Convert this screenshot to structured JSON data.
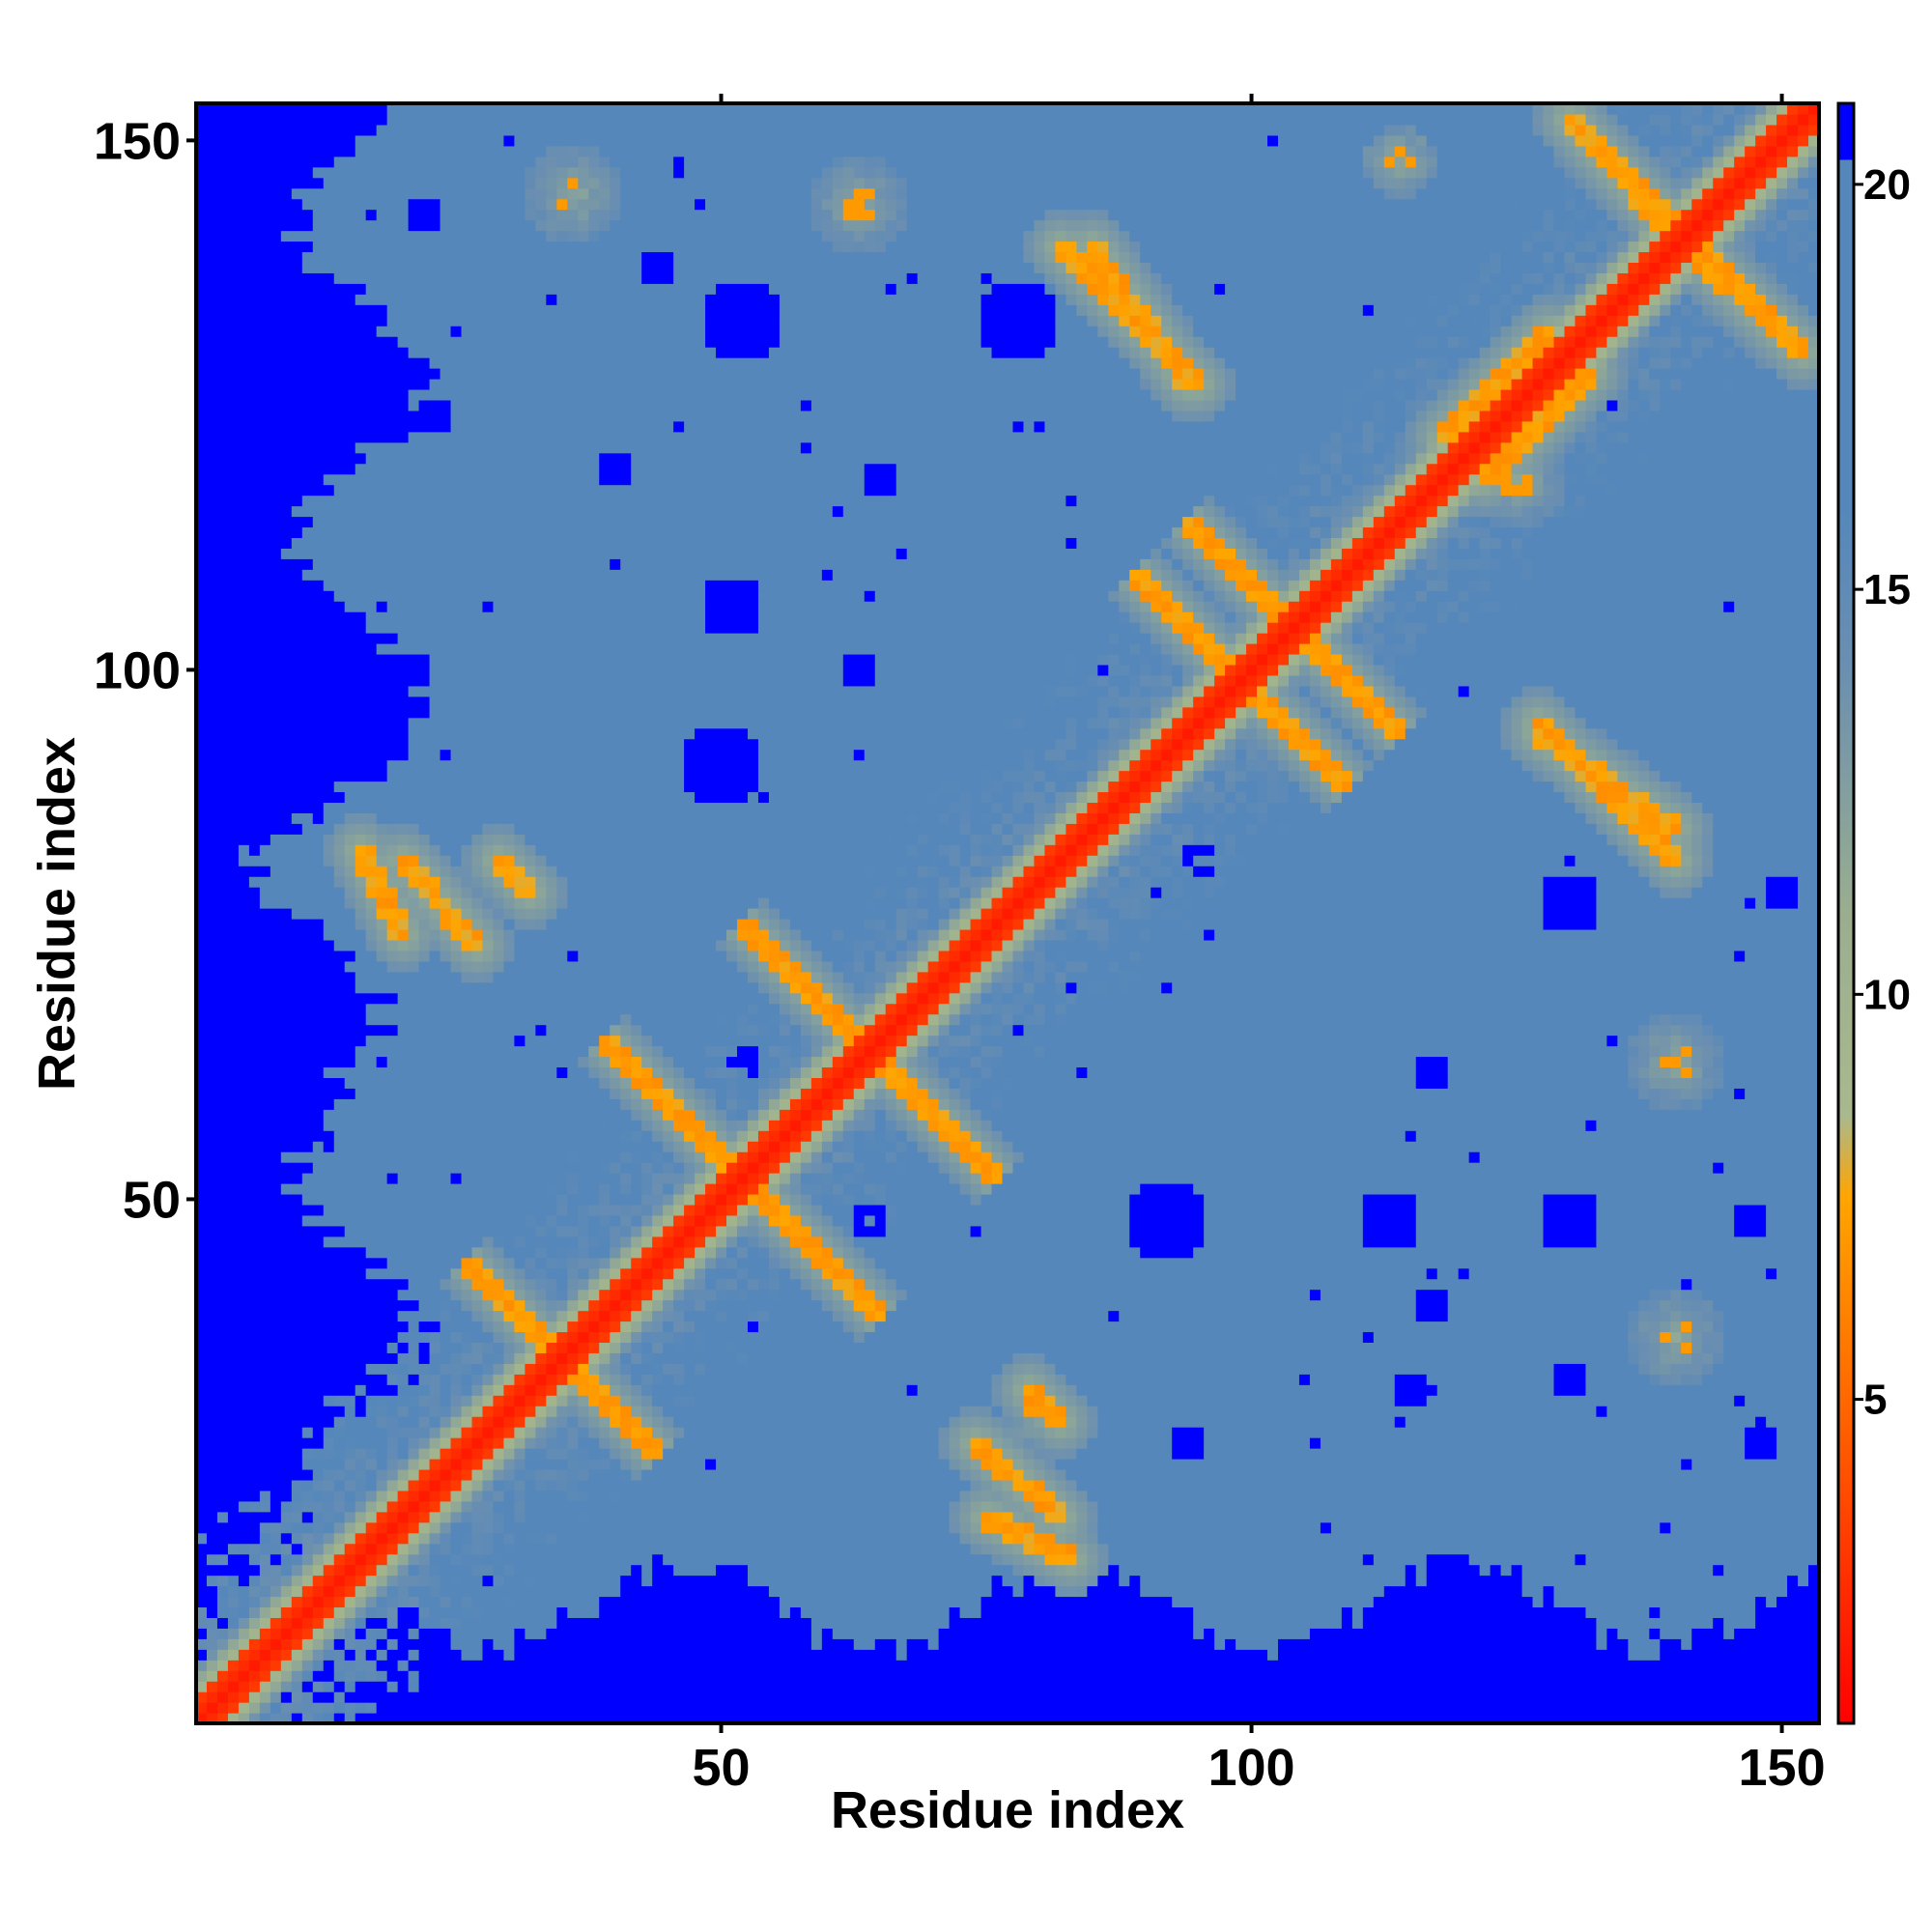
{
  "chart_data": {
    "type": "heatmap",
    "title": "",
    "xlabel": "Residue index",
    "ylabel": "Residue index",
    "n_residues": 153,
    "xlim": [
      1,
      153
    ],
    "ylim": [
      1,
      153
    ],
    "x_ticks": [
      50,
      100,
      150
    ],
    "y_ticks": [
      50,
      100,
      150
    ],
    "x_tick_labels": [
      "50",
      "100",
      "150"
    ],
    "y_tick_labels": [
      "50",
      "100",
      "150"
    ],
    "colorbar": {
      "min": 1,
      "max": 21,
      "ticks": [
        5,
        10,
        15,
        20
      ],
      "tick_labels": [
        "5",
        "10",
        "15",
        "20"
      ],
      "stops": [
        {
          "value": 1,
          "color": "#ff0000"
        },
        {
          "value": 3.8,
          "color": "#ff4a00"
        },
        {
          "value": 7.5,
          "color": "#ffa500"
        },
        {
          "value": 8.5,
          "color": "#a9b98e"
        },
        {
          "value": 11,
          "color": "#9aae8f"
        },
        {
          "value": 14,
          "color": "#6b8fb0"
        },
        {
          "value": 16,
          "color": "#5587bb"
        },
        {
          "value": 20.3,
          "color": "#5587bb"
        },
        {
          "value": 20.3,
          "color": "#0000ff"
        },
        {
          "value": 21,
          "color": "#0000ff"
        }
      ]
    },
    "grid": false,
    "legend": "right colorbar",
    "description": "Symmetric residue-residue distance map with diagonal red band, orange contact strips crossing the diagonal near residues 35, 52, 63, 100, 140, and blue (>20) regions near the left and bottom edges and scattered blobs",
    "features": {
      "cross_contacts": [
        {
          "center": [
            35,
            35
          ],
          "half_len": 9
        },
        {
          "center": [
            52,
            52
          ],
          "half_len": 13
        },
        {
          "center": [
            64,
            64
          ],
          "half_len": 12
        },
        {
          "center": [
            99,
            99
          ],
          "half_len": 10
        },
        {
          "center": [
            104,
            104
          ],
          "half_len": 10
        },
        {
          "center": [
            141,
            141
          ],
          "half_len": 9
        }
      ],
      "off_diagonal_strips": [
        {
          "from": [
            16,
            83
          ],
          "to": [
            20,
            75
          ]
        },
        {
          "from": [
            29,
            82
          ],
          "to": [
            32,
            79
          ]
        },
        {
          "from": [
            74,
            27
          ],
          "to": [
            82,
            20
          ]
        },
        {
          "from": [
            85,
            140
          ],
          "to": [
            94,
            127
          ]
        },
        {
          "from": [
            127,
            95
          ],
          "to": [
            140,
            82
          ]
        },
        {
          "from": [
            130,
            152
          ],
          "to": [
            141,
            140
          ]
        },
        {
          "from": [
            118,
            122
          ],
          "to": [
            128,
            132
          ]
        }
      ],
      "contact_clusters": [
        {
          "center": [
            36,
            145
          ],
          "radius": 4
        },
        {
          "center": [
            63,
            144
          ],
          "radius": 4
        },
        {
          "center": [
            140,
            37
          ],
          "radius": 4
        },
        {
          "center": [
            140,
            63
          ],
          "radius": 4
        },
        {
          "center": [
            80,
            30
          ],
          "radius": 3
        },
        {
          "center": [
            125,
            118
          ],
          "radius": 4
        },
        {
          "center": [
            114,
            148
          ],
          "radius": 3
        }
      ],
      "blue_blobs": [
        {
          "center": [
            52,
            133
          ],
          "r": 4
        },
        {
          "center": [
            78,
            133
          ],
          "r": 4
        },
        {
          "center": [
            50,
            91
          ],
          "r": 4
        },
        {
          "center": [
            51,
            106
          ],
          "r": 3
        },
        {
          "center": [
            44,
            138
          ],
          "r": 2
        },
        {
          "center": [
            92,
            48
          ],
          "r": 4
        },
        {
          "center": [
            113,
            48
          ],
          "r": 3
        },
        {
          "center": [
            130,
            78
          ],
          "r": 3
        },
        {
          "center": [
            130,
            48
          ],
          "r": 3
        },
        {
          "center": [
            147,
            48
          ],
          "r": 2
        },
        {
          "center": [
            64,
            48
          ],
          "r": 2
        },
        {
          "center": [
            117,
            62
          ],
          "r": 2
        },
        {
          "center": [
            117,
            40
          ],
          "r": 2
        },
        {
          "center": [
            130,
            33
          ],
          "r": 2
        },
        {
          "center": [
            23,
            124
          ],
          "r": 2
        },
        {
          "center": [
            40,
            119
          ],
          "r": 2
        },
        {
          "center": [
            65,
            118
          ],
          "r": 2
        },
        {
          "center": [
            21,
            100
          ],
          "r": 2
        },
        {
          "center": [
            63,
            100
          ],
          "r": 1.5
        },
        {
          "center": [
            95,
            82
          ],
          "r": 2
        },
        {
          "center": [
            150,
            79
          ],
          "r": 2
        },
        {
          "center": [
            52,
            63
          ],
          "r": 1.5
        },
        {
          "center": [
            22,
            143
          ],
          "r": 1.5
        },
        {
          "center": [
            115,
            32
          ],
          "r": 1.5
        },
        {
          "center": [
            94,
            27
          ],
          "r": 1.5
        },
        {
          "center": [
            148,
            27
          ],
          "r": 1.5
        }
      ]
    }
  }
}
